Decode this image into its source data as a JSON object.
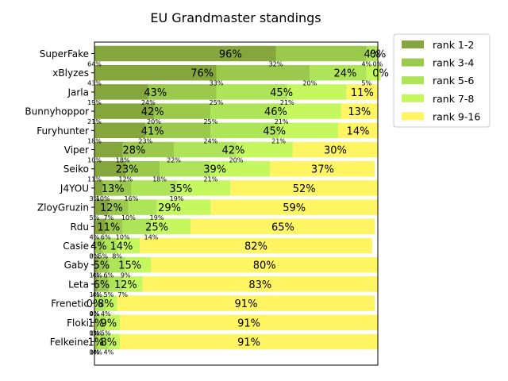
{
  "chart_data": {
    "type": "bar",
    "orientation": "horizontal",
    "stacked": true,
    "title": "EU Grandmaster standings",
    "xlabel": "",
    "ylabel": "",
    "xlim": [
      0,
      100
    ],
    "grid": false,
    "legend_position": "outside top-right",
    "categories": [
      "SuperFake",
      "xBlyzes",
      "Jarla",
      "Bunnyhoppor",
      "Furyhunter",
      "Viper",
      "Seiko",
      "J4YOU",
      "ZloyGruzin",
      "Rdu",
      "Casie",
      "Gaby",
      "Leta",
      "Frenetic",
      "Floki",
      "Felkeine"
    ],
    "series": [
      {
        "name": "rank 1-2",
        "color": "#84a63c",
        "values": [
          64,
          43,
          19,
          21,
          18,
          10,
          11,
          3,
          5,
          4,
          0,
          1,
          1,
          0,
          0,
          0
        ]
      },
      {
        "name": "rank 3-4",
        "color": "#9ac94c",
        "values": [
          32,
          33,
          24,
          20,
          23,
          18,
          12,
          10,
          7,
          6,
          3,
          4,
          4,
          0,
          1,
          1
        ]
      },
      {
        "name": "rank 5-6",
        "color": "#aee558",
        "values": [
          4,
          20,
          25,
          25,
          24,
          22,
          18,
          16,
          10,
          10,
          5,
          6,
          5,
          4,
          3,
          4
        ]
      },
      {
        "name": "rank 7-8",
        "color": "#c4f85e",
        "values": [
          0,
          5,
          21,
          21,
          21,
          20,
          21,
          19,
          19,
          14,
          8,
          9,
          7,
          4,
          5,
          4
        ]
      },
      {
        "name": "rank 9-16",
        "color": "#fff462",
        "values": [
          0,
          0,
          11,
          13,
          14,
          30,
          37,
          52,
          59,
          65,
          82,
          80,
          83,
          91,
          91,
          91
        ]
      }
    ],
    "group_labels": {
      "top_two": [
        "96%",
        "76%",
        "43%",
        "42%",
        "41%",
        "28%",
        "23%",
        "13%",
        "12%",
        "11%",
        "4%",
        "5%",
        "6%",
        "0%",
        "1%",
        "1%"
      ],
      "middle": [
        "4%",
        "24%",
        "45%",
        "46%",
        "45%",
        "42%",
        "39%",
        "35%",
        "29%",
        "25%",
        "14%",
        "15%",
        "12%",
        "8%",
        "9%",
        "8%"
      ],
      "bottom": [
        "0%",
        "0%",
        "11%",
        "13%",
        "14%",
        "30%",
        "37%",
        "52%",
        "59%",
        "65%",
        "82%",
        "80%",
        "83%",
        "91%",
        "91%",
        "91%"
      ]
    }
  }
}
